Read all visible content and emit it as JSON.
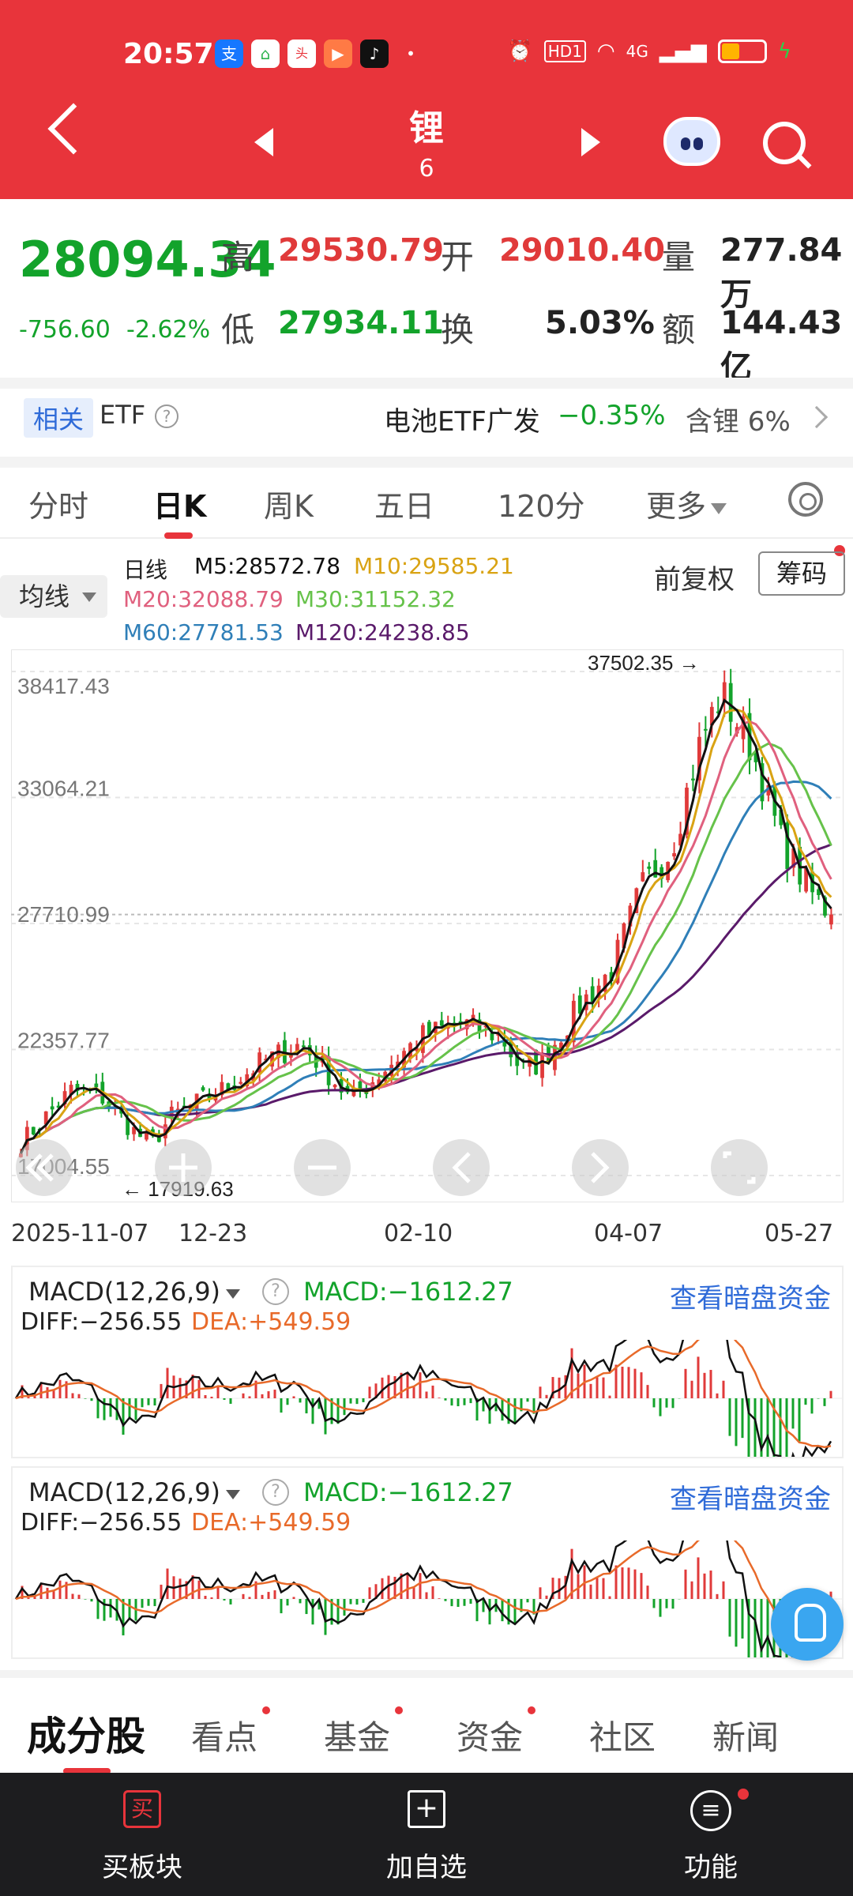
{
  "status": {
    "time": "20:57",
    "app_icons": [
      "alipay-icon",
      "home-icon",
      "toutiao-icon",
      "video-icon",
      "tiktok-icon"
    ],
    "hd_label": "HD1",
    "net_label": "4G"
  },
  "nav": {
    "title": "锂",
    "subtitle": "6"
  },
  "quote": {
    "price": "28094.34",
    "change": "-756.60",
    "change_pct": "-2.62%",
    "high_label": "高",
    "high": "29530.79",
    "open_label": "开",
    "open": "29010.40",
    "vol_label": "量",
    "vol": "277.84万",
    "low_label": "低",
    "low": "27934.11",
    "turnover_label": "换",
    "turnover": "5.03%",
    "amount_label": "额",
    "amount": "144.43亿"
  },
  "etf": {
    "tag": "相关",
    "label": "ETF",
    "name": "电池ETF广发",
    "change": "−0.35%",
    "holding": "含锂 6%"
  },
  "tabs": [
    "分时",
    "日K",
    "周K",
    "五日",
    "120分",
    "更多"
  ],
  "ma": {
    "select": "均线",
    "period": "日线",
    "m5": "M5:28572.78",
    "m10": "M10:29585.21",
    "m20": "M20:32088.79",
    "m30": "M30:31152.32",
    "m60": "M60:27781.53",
    "m120": "M120:24238.85",
    "adj": "前复权",
    "chip": "筹码",
    "colors": {
      "m5": "#111111",
      "m10": "#d9a313",
      "m20": "#e0607e",
      "m30": "#66c24a",
      "m60": "#2f7fb8",
      "m120": "#5a1a6a"
    }
  },
  "chart_data": {
    "type": "candlestick",
    "y_ticks": [
      "38417.43",
      "33064.21",
      "27710.99",
      "22357.77",
      "17004.55"
    ],
    "ylim": [
      17004.55,
      38417.43
    ],
    "x_ticks": [
      "2025-11-07",
      "12-23",
      "02-10",
      "04-07",
      "05-27"
    ],
    "high_mark": "37502.35",
    "low_mark": "17919.63",
    "last_close": 28094.34
  },
  "macd": {
    "title": "MACD(12,26,9)",
    "macd": "MACD:−1612.27",
    "diff": "DIFF:−256.55",
    "dea": "DEA:+549.59",
    "link": "查看暗盘资金"
  },
  "bottom_tabs": [
    "成分股",
    "看点",
    "基金",
    "资金",
    "社区",
    "新闻"
  ],
  "footer": {
    "buy": "买板块",
    "buy_icon": "买",
    "add": "加自选",
    "func": "功能"
  }
}
